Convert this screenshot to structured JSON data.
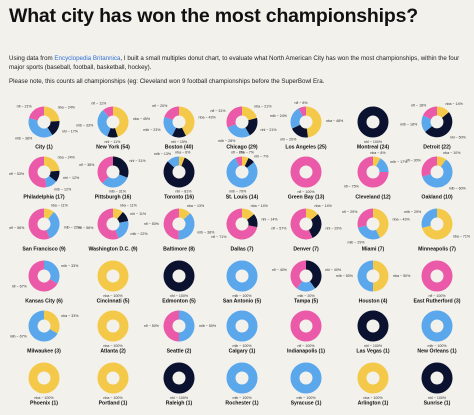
{
  "title": "What city has won the most championships?",
  "intro": {
    "before_link": "Using data from ",
    "link_text": "Encyclopedia Britannica",
    "after_link": ", I built a small multiples donut chart, to evaluate what North American City has won the most championships, within the four major sports (baseball, football, basketball, hockey).",
    "note": "Please note, this counts all championships (eg: Cleveland won 9 football championships before the SuperBowl Era."
  },
  "colors": {
    "nba": "#f4c94a",
    "nhl": "#0b1230",
    "mlb": "#5aa7ec",
    "nfl": "#ea5aa8",
    "background": "#f3f1ec",
    "link": "#2f6fd6"
  },
  "chart_data": {
    "type": "donut-small-multiples",
    "sport_order": [
      "nba",
      "nhl",
      "mlb",
      "nfl"
    ],
    "cities": [
      {
        "name": "City (1)",
        "shares": {
          "nba": 24,
          "nhl": 17,
          "mlb": 38,
          "nfl": 21
        },
        "labels": {
          "nba": "nba ~ 24%",
          "nhl": "nhl ~ 17%",
          "mlb": "mlb ~ 38%",
          "nfl": "nfl ~ 21%"
        }
      },
      {
        "name": "New York (54)",
        "shares": {
          "nba": 45,
          "nhl": 11,
          "mlb": 33,
          "nfl": 11
        },
        "labels": {
          "nba": "nba ~ 45%",
          "nhl": "nhl ~ 11%",
          "mlb": "mlb ~ 33%",
          "nfl": "nfl ~ 11%"
        }
      },
      {
        "name": "Boston (40)",
        "shares": {
          "nba": 43,
          "nhl": 15,
          "mlb": 23,
          "nfl": 20
        },
        "labels": {
          "nba": "nba ~ 43%",
          "nhl": "nhl ~ 15%",
          "mlb": "mlb ~ 23%",
          "nfl": "nfl ~ 20%"
        }
      },
      {
        "name": "Chicago (29)",
        "shares": {
          "nba": 21,
          "nhl": 21,
          "mlb": 28,
          "nfl": 31
        },
        "labels": {
          "nba": "nba ~ 21%",
          "nhl": "nhl ~ 21%",
          "mlb": "mlb ~ 28%",
          "nfl": "nfl ~ 31%"
        }
      },
      {
        "name": "Los Angeles (25)",
        "shares": {
          "nba": 48,
          "nhl": 20,
          "mlb": 24,
          "nfl": 8
        },
        "labels": {
          "nba": "nba ~ 48%",
          "nhl": "nhl ~ 20%",
          "mlb": "mlb ~ 24%",
          "nfl": "nfl ~ 8%"
        }
      },
      {
        "name": "Montreal (24)",
        "shares": {
          "nhl": 100
        },
        "labels": {
          "nhl": "nhl ~ 100%"
        }
      },
      {
        "name": "Detroit (22)",
        "shares": {
          "nba": 14,
          "nhl": 50,
          "mlb": 18,
          "nfl": 18
        },
        "labels": {
          "nba": "nba ~ 14%",
          "nhl": "nhl ~ 50%",
          "mlb": "mlb ~ 18%",
          "nfl": "nfl ~ 18%"
        }
      },
      {
        "name": "Philadelphia (17)",
        "shares": {
          "nba": 24,
          "nhl": 12,
          "mlb": 12,
          "nfl": 53
        },
        "labels": {
          "nba": "nba ~ 24%",
          "nhl": "nhl ~ 12%",
          "mlb": "mlb ~ 12%",
          "nfl": "nfl ~ 53%"
        }
      },
      {
        "name": "Pittsburgh (16)",
        "shares": {
          "nhl": 31,
          "mlb": 31,
          "nfl": 38
        },
        "labels": {
          "nhl": "nhl ~ 31%",
          "mlb": "mlb ~ 31%",
          "nfl": "nfl ~ 38%"
        }
      },
      {
        "name": "Toronto (16)",
        "shares": {
          "nba": 6,
          "nhl": 81,
          "mlb": 13
        },
        "labels": {
          "nba": "nba ~ 6%",
          "nhl": "nhl ~ 81%",
          "mlb": "mlb ~ 13%"
        }
      },
      {
        "name": "St. Louis (14)",
        "shares": {
          "nba": 7,
          "nhl": 7,
          "mlb": 79,
          "nfl": 7
        },
        "labels": {
          "nba": "nba ~ 7%",
          "nhl": "nhl ~ 7%",
          "mlb": "mlb ~ 79%",
          "nfl": "nfl ~ 7%"
        }
      },
      {
        "name": "Green Bay (13)",
        "shares": {
          "nfl": 100
        },
        "labels": {
          "nfl": "nfl ~ 100%"
        }
      },
      {
        "name": "Cleveland (12)",
        "shares": {
          "nba": 8,
          "mlb": 17,
          "nfl": 75
        },
        "labels": {
          "nba": "nba ~ 8%",
          "mlb": "mlb ~ 17%",
          "nfl": "nfl ~ 75%"
        }
      },
      {
        "name": "Oakland (10)",
        "shares": {
          "nba": 10,
          "mlb": 60,
          "nfl": 30
        },
        "labels": {
          "nba": "nba ~ 10%",
          "mlb": "mlb ~ 60%",
          "nfl": "nfl ~ 30%"
        }
      },
      {
        "name": "San Francisco (9)",
        "shares": {
          "nba": 11,
          "mlb": 33,
          "nfl": 56
        },
        "labels": {
          "nba": "nba ~ 11%",
          "mlb": "mlb ~ 33%",
          "nfl": "nfl ~ 56%"
        }
      },
      {
        "name": "Washington D.C. (9)",
        "shares": {
          "nba": 11,
          "nhl": 11,
          "mlb": 22,
          "nfl": 56
        },
        "labels": {
          "nba": "nba ~ 11%",
          "nhl": "nhl ~ 11%",
          "mlb": "mlb ~ 22%",
          "nfl": "nfl ~ 56%"
        }
      },
      {
        "name": "Baltimore (8)",
        "shares": {
          "nba": 13,
          "mlb": 38,
          "nfl": 50
        },
        "labels": {
          "nba": "nba ~ 13%",
          "mlb": "mlb ~ 38%",
          "nfl": "nfl ~ 50%"
        }
      },
      {
        "name": "Dallas (7)",
        "shares": {
          "nba": 14,
          "nhl": 14,
          "nfl": 71
        },
        "labels": {
          "nba": "nba ~ 14%",
          "nhl": "nhl ~ 14%",
          "nfl": "nfl ~ 71%"
        }
      },
      {
        "name": "Denver (7)",
        "shares": {
          "nba": 14,
          "nhl": 29,
          "nfl": 57
        },
        "labels": {
          "nba": "nba ~ 14%",
          "nhl": "nhl ~ 29%",
          "nfl": "nfl ~ 57%"
        }
      },
      {
        "name": "Miami (7)",
        "shares": {
          "nba": 43,
          "mlb": 29,
          "nfl": 29
        },
        "labels": {
          "nba": "nba ~ 43%",
          "mlb": "mlb ~ 29%",
          "nfl": "nfl ~ 29%"
        }
      },
      {
        "name": "Minneapolis (7)",
        "shares": {
          "nba": 71,
          "mlb": 29
        },
        "labels": {
          "nba": "nba ~ 71%",
          "mlb": "mlb ~ 29%"
        }
      },
      {
        "name": "Kansas City (6)",
        "shares": {
          "mlb": 33,
          "nfl": 67
        },
        "labels": {
          "mlb": "mlb ~ 33%",
          "nfl": "nfl ~ 67%"
        }
      },
      {
        "name": "Cincinnati (5)",
        "shares": {
          "nba": 100
        },
        "labels": {
          "nba": "nba ~ 100%"
        }
      },
      {
        "name": "Edmonton (5)",
        "shares": {
          "nhl": 100
        },
        "labels": {
          "nhl": "nhl ~ 100%"
        }
      },
      {
        "name": "San Antonio (5)",
        "shares": {
          "mlb": 100
        },
        "labels": {
          "mlb": "mlb ~ 100%"
        }
      },
      {
        "name": "Tampa (5)",
        "shares": {
          "nhl": 40,
          "mlb": 20,
          "nfl": 40
        },
        "labels": {
          "nhl": "nhl ~ 40%",
          "mlb": "mlb ~ 20%",
          "nfl": "nfl ~ 40%"
        }
      },
      {
        "name": "Houston (4)",
        "shares": {
          "nba": 50,
          "mlb": 50
        },
        "labels": {
          "nba": "nba ~ 50%",
          "mlb": "mlb ~ 50%"
        }
      },
      {
        "name": "East Rutherford (3)",
        "shares": {
          "nfl": 100
        },
        "labels": {
          "nfl": "nfl ~ 100%"
        }
      },
      {
        "name": "Milwaukee (3)",
        "shares": {
          "nba": 33,
          "mlb": 67
        },
        "labels": {
          "nba": "nba ~ 33%",
          "mlb": "mlb ~ 67%"
        }
      },
      {
        "name": "Atlanta (2)",
        "shares": {
          "nba": 100
        },
        "labels": {
          "nba": "nba ~ 100%"
        }
      },
      {
        "name": "Seattle (2)",
        "shares": {
          "mlb": 50,
          "nfl": 50
        },
        "labels": {
          "mlb": "mlb ~ 50%",
          "nfl": "nfl ~ 50%"
        }
      },
      {
        "name": "Calgary (1)",
        "shares": {
          "mlb": 100
        },
        "labels": {
          "mlb": "mlb ~ 100%"
        }
      },
      {
        "name": "Indianapolis (1)",
        "shares": {
          "nfl": 100
        },
        "labels": {
          "nfl": "nfl ~ 100%"
        }
      },
      {
        "name": "Las Vegas (1)",
        "shares": {
          "nhl": 100
        },
        "labels": {
          "nhl": "nhl ~ 100%"
        }
      },
      {
        "name": "New Orleans (1)",
        "shares": {
          "mlb": 100
        },
        "labels": {
          "mlb": "mlb ~ 100%"
        }
      },
      {
        "name": "Phoenix (1)",
        "shares": {
          "nba": 100
        },
        "labels": {
          "nba": "nba ~ 100%"
        }
      },
      {
        "name": "Portland (1)",
        "shares": {
          "nba": 100
        },
        "labels": {
          "nba": "nba ~ 100%"
        }
      },
      {
        "name": "Raleigh (1)",
        "shares": {
          "nhl": 100
        },
        "labels": {
          "nhl": "nhl ~ 100%"
        }
      },
      {
        "name": "Rochester (1)",
        "shares": {
          "mlb": 100
        },
        "labels": {
          "mlb": "mlb ~ 100%"
        }
      },
      {
        "name": "Syracuse (1)",
        "shares": {
          "mlb": 100
        },
        "labels": {
          "mlb": "mlb ~ 100%"
        }
      },
      {
        "name": "Arlington (1)",
        "shares": {
          "nba": 100
        },
        "labels": {
          "nba": "nba ~ 100%"
        }
      },
      {
        "name": "Sunrise (1)",
        "shares": {
          "nhl": 100
        },
        "labels": {
          "nhl": "nhl ~ 100%"
        }
      }
    ]
  }
}
